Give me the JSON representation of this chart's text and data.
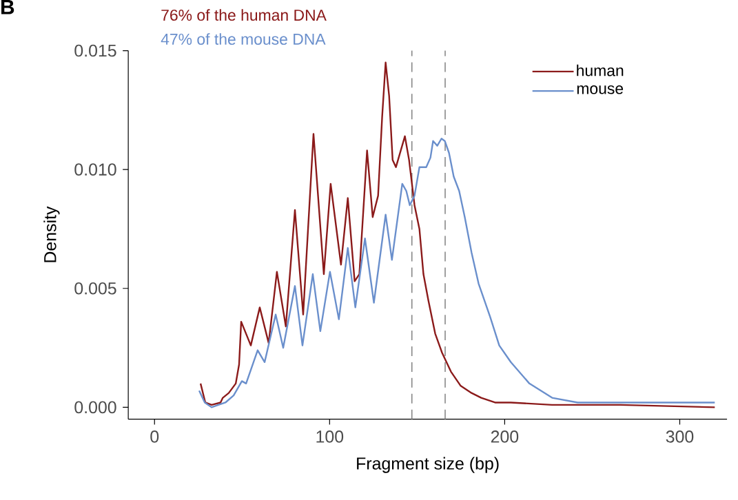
{
  "chart_data": {
    "type": "line",
    "xlabel": "Fragment size (bp)",
    "ylabel": "Density",
    "annotations": [
      "B",
      "76% of the human DNA",
      "47% of the mouse DNA"
    ],
    "series": [
      {
        "name": "human",
        "color": "#8b1a1a",
        "x": [
          26.3,
          29,
          32.6,
          37.7,
          39,
          42.4,
          46.4,
          48.3,
          49.5,
          55,
          60.1,
          65.2,
          69.9,
          75,
          80.2,
          84.9,
          90.8,
          96.7,
          100.6,
          106.5,
          110.4,
          114.3,
          117,
          121.4,
          124.6,
          127.7,
          130,
          132,
          134,
          136,
          137.9,
          143,
          145.4,
          148.5,
          151.3,
          153.6,
          156.4,
          160.3,
          164.2,
          169.3,
          174.9,
          181.1,
          186.6,
          194.5,
          203.5,
          227,
          266,
          320
        ],
        "values": [
          0.001,
          0.0002,
          0.0001,
          0.0002,
          0.0004,
          0.0006,
          0.001,
          0.0018,
          0.0036,
          0.0026,
          0.0042,
          0.0027,
          0.0057,
          0.0034,
          0.0083,
          0.0039,
          0.0115,
          0.0056,
          0.0094,
          0.006,
          0.0088,
          0.0053,
          0.0056,
          0.0108,
          0.008,
          0.0089,
          0.0122,
          0.0145,
          0.0131,
          0.0104,
          0.0101,
          0.0114,
          0.0104,
          0.0085,
          0.0075,
          0.0056,
          0.0045,
          0.0031,
          0.0023,
          0.0015,
          0.0009,
          0.0006,
          0.0004,
          0.0002,
          0.0002,
          0.0001,
          0.0001,
          0
        ]
      },
      {
        "name": "mouse",
        "color": "#6a8fcc",
        "x": [
          25.5,
          28.7,
          32.6,
          36.5,
          40.5,
          45.2,
          49.9,
          52.3,
          58.9,
          62.9,
          69.2,
          73.5,
          80.2,
          84.5,
          90.4,
          94.7,
          100.2,
          105.3,
          110.4,
          114.7,
          120.2,
          125.3,
          132,
          135.6,
          141.5,
          143.8,
          145.8,
          148.5,
          151.3,
          155.2,
          157.6,
          159.1,
          161.5,
          163.9,
          165.8,
          168.2,
          170.9,
          174,
          177.2,
          181.1,
          185.1,
          191.7,
          196.9,
          203.5,
          214.1,
          227.1,
          241.7,
          266,
          320
        ],
        "values": [
          0.0007,
          0.0002,
          0,
          0.0001,
          0.0002,
          0.0005,
          0.0011,
          0.001,
          0.0024,
          0.0019,
          0.0039,
          0.0025,
          0.0051,
          0.0026,
          0.0056,
          0.0032,
          0.0057,
          0.0037,
          0.0067,
          0.0042,
          0.0071,
          0.0044,
          0.0081,
          0.0062,
          0.0094,
          0.0091,
          0.0085,
          0.0089,
          0.0101,
          0.0101,
          0.0105,
          0.0112,
          0.011,
          0.0113,
          0.0112,
          0.0107,
          0.0097,
          0.0091,
          0.008,
          0.0065,
          0.0052,
          0.0038,
          0.0026,
          0.0019,
          0.001,
          0.0004,
          0.0002,
          0.0002,
          0.0002
        ]
      }
    ],
    "xlim": [
      -15,
      327
    ],
    "ylim": [
      -0.0005,
      0.015
    ],
    "xticks": [
      0,
      100,
      200,
      300
    ],
    "yticks": [
      {
        "value": 0,
        "label": "0.000"
      },
      0.005,
      {
        "value": 0.01,
        "label": "0.010"
      },
      0.015
    ],
    "ref_lines": [
      {
        "axis": "x",
        "value": 147,
        "color": "#808080",
        "line_style": "dashed"
      },
      {
        "axis": "x",
        "value": 166,
        "color": "#808080",
        "line_style": "dashed"
      }
    ],
    "legend": "top right",
    "marker": "none",
    "line_style": "solid",
    "grid": false
  }
}
